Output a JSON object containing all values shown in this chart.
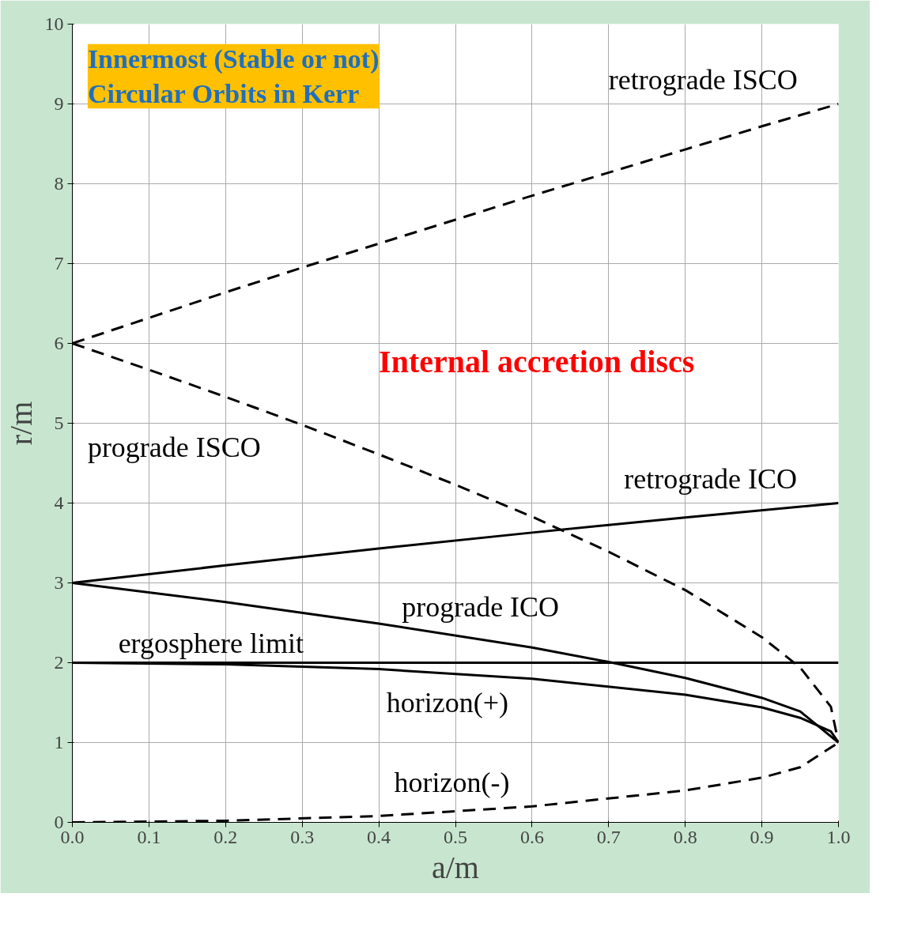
{
  "chart_data": {
    "type": "line",
    "title": "Innermost (Stable or not)\nCircular Orbits in Kerr",
    "xlabel": "a/m",
    "ylabel": "r/m",
    "xlim": [
      0,
      1
    ],
    "ylim": [
      0,
      10
    ],
    "xticks": [
      {
        "value": 0,
        "label": "0.0"
      },
      0.1,
      0.2,
      0.3,
      0.4,
      0.5,
      0.6,
      0.7,
      0.8,
      0.9,
      {
        "value": 1,
        "label": "1.0"
      }
    ],
    "yticks": [
      0,
      1,
      2,
      3,
      4,
      5,
      6,
      7,
      8,
      9,
      10
    ],
    "grid": true,
    "series": [
      {
        "name": "retrograde ISCO",
        "color": "#000000",
        "line_style": "dashed",
        "x": [
          0,
          0.1,
          0.2,
          0.3,
          0.4,
          0.5,
          0.6,
          0.7,
          0.8,
          0.9,
          1.0
        ],
        "values": [
          6,
          6.32,
          6.64,
          6.95,
          7.25,
          7.55,
          7.85,
          8.14,
          8.43,
          8.72,
          9.0
        ]
      },
      {
        "name": "prograde ISCO",
        "color": "#000000",
        "line_style": "dashed",
        "x": [
          0,
          0.1,
          0.2,
          0.3,
          0.4,
          0.5,
          0.6,
          0.7,
          0.8,
          0.9,
          0.95,
          0.99,
          1.0
        ],
        "values": [
          6,
          5.67,
          5.33,
          4.98,
          4.61,
          4.23,
          3.83,
          3.39,
          2.91,
          2.32,
          1.94,
          1.45,
          1.0
        ]
      },
      {
        "name": "retrograde ICO",
        "color": "#000000",
        "line_style": "solid",
        "x": [
          0,
          0.2,
          0.4,
          0.6,
          0.8,
          1.0
        ],
        "values": [
          3,
          3.22,
          3.43,
          3.63,
          3.82,
          4.0
        ]
      },
      {
        "name": "prograde ICO",
        "color": "#000000",
        "line_style": "solid",
        "x": [
          0,
          0.2,
          0.4,
          0.6,
          0.7,
          0.8,
          0.9,
          0.95,
          1.0
        ],
        "values": [
          3,
          2.76,
          2.49,
          2.19,
          2.01,
          1.81,
          1.56,
          1.39,
          1.0
        ]
      },
      {
        "name": "ergosphere limit",
        "color": "#000000",
        "line_style": "solid",
        "x": [
          0,
          1.0
        ],
        "values": [
          2,
          2
        ]
      },
      {
        "name": "horizon(+)",
        "color": "#000000",
        "line_style": "solid",
        "x": [
          0,
          0.2,
          0.4,
          0.6,
          0.8,
          0.9,
          0.95,
          0.99,
          1.0
        ],
        "values": [
          2,
          1.98,
          1.92,
          1.8,
          1.6,
          1.44,
          1.31,
          1.14,
          1.0
        ]
      },
      {
        "name": "horizon(-)",
        "color": "#000000",
        "line_style": "dashed",
        "x": [
          0,
          0.2,
          0.4,
          0.6,
          0.8,
          0.9,
          0.95,
          1.0
        ],
        "values": [
          0,
          0.02,
          0.08,
          0.2,
          0.4,
          0.56,
          0.69,
          1.0
        ]
      }
    ],
    "annotations": [
      "Internal accretion discs"
    ]
  }
}
